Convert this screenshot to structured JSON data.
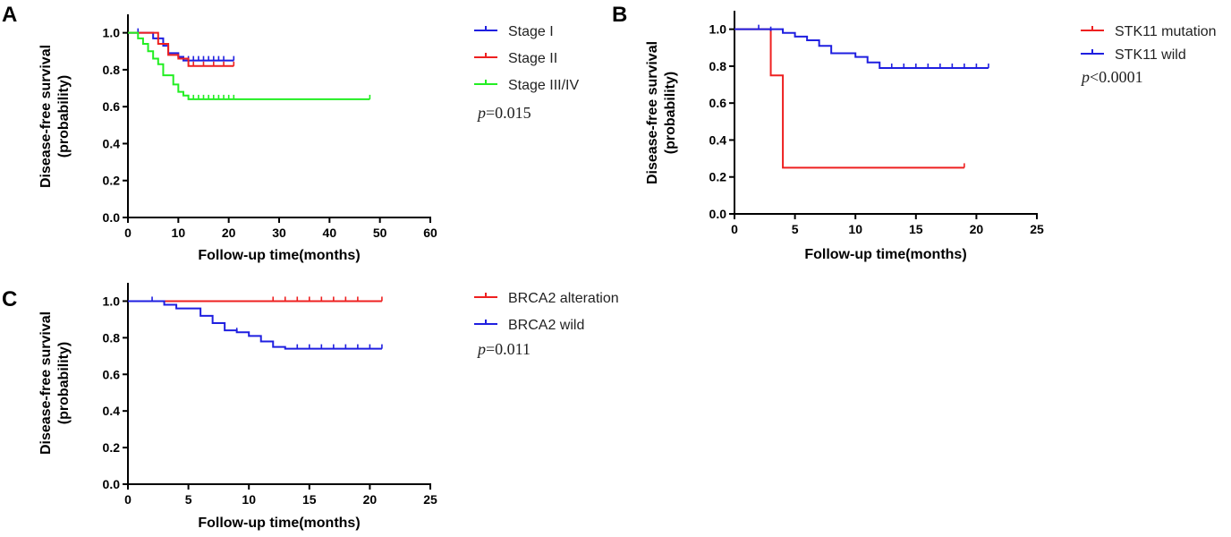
{
  "chart_data": [
    {
      "panel": "A",
      "type": "line",
      "subtype": "kaplan-meier",
      "ylabel_lines": [
        "Disease-free survival",
        "(probability)"
      ],
      "xlabel": "Follow-up time(months)",
      "xlim": [
        0,
        60
      ],
      "ylim": [
        0,
        1.1
      ],
      "xticks": [
        0,
        10,
        20,
        30,
        40,
        50,
        60
      ],
      "yticks": [
        "0.0",
        "0.2",
        "0.4",
        "0.6",
        "0.8",
        "1.0"
      ],
      "legend_position": "right",
      "pvalue_prefix": "p",
      "pvalue_rest": "=0.015",
      "series": [
        {
          "name": "Stage I",
          "color": "#1f1fe0",
          "steps": [
            [
              0,
              1.0
            ],
            [
              5,
              0.97
            ],
            [
              7,
              0.93
            ],
            [
              8,
              0.89
            ],
            [
              10,
              0.87
            ],
            [
              11,
              0.85
            ],
            [
              21,
              0.85
            ]
          ],
          "censors": [
            [
              2,
              1.0
            ],
            [
              12,
              0.85
            ],
            [
              13,
              0.85
            ],
            [
              14,
              0.85
            ],
            [
              15,
              0.85
            ],
            [
              16,
              0.85
            ],
            [
              17,
              0.85
            ],
            [
              18,
              0.85
            ],
            [
              19,
              0.85
            ],
            [
              21,
              0.85
            ]
          ]
        },
        {
          "name": "Stage II",
          "color": "#ee2020",
          "steps": [
            [
              0,
              1.0
            ],
            [
              6,
              0.94
            ],
            [
              8,
              0.88
            ],
            [
              10,
              0.86
            ],
            [
              12,
              0.82
            ],
            [
              21,
              0.82
            ]
          ],
          "censors": [
            [
              13,
              0.82
            ],
            [
              15,
              0.82
            ],
            [
              17,
              0.82
            ],
            [
              19,
              0.82
            ],
            [
              21,
              0.82
            ]
          ]
        },
        {
          "name": "Stage III/IV",
          "color": "#22ee22",
          "steps": [
            [
              0,
              1.0
            ],
            [
              2,
              0.97
            ],
            [
              3,
              0.94
            ],
            [
              4,
              0.9
            ],
            [
              5,
              0.86
            ],
            [
              6,
              0.83
            ],
            [
              7,
              0.77
            ],
            [
              9,
              0.72
            ],
            [
              10,
              0.68
            ],
            [
              11,
              0.66
            ],
            [
              12,
              0.64
            ],
            [
              48,
              0.64
            ]
          ],
          "censors": [
            [
              13,
              0.64
            ],
            [
              14,
              0.64
            ],
            [
              15,
              0.64
            ],
            [
              16,
              0.64
            ],
            [
              17,
              0.64
            ],
            [
              18,
              0.64
            ],
            [
              19,
              0.64
            ],
            [
              20,
              0.64
            ],
            [
              21,
              0.64
            ],
            [
              48,
              0.64
            ]
          ]
        }
      ]
    },
    {
      "panel": "B",
      "type": "line",
      "subtype": "kaplan-meier",
      "ylabel_lines": [
        "Disease-free survival",
        "(probability)"
      ],
      "xlabel": "Follow-up time(months)",
      "xlim": [
        0,
        25
      ],
      "ylim": [
        0,
        1.1
      ],
      "xticks": [
        0,
        5,
        10,
        15,
        20,
        25
      ],
      "yticks": [
        "0.0",
        "0.2",
        "0.4",
        "0.6",
        "0.8",
        "1.0"
      ],
      "legend_position": "right",
      "pvalue_prefix": "p",
      "pvalue_rest": "<0.0001",
      "series": [
        {
          "name": "STK11 mutation",
          "color": "#ee2020",
          "steps": [
            [
              0,
              1.0
            ],
            [
              3,
              0.75
            ],
            [
              4,
              0.25
            ],
            [
              19,
              0.25
            ]
          ],
          "censors": [
            [
              19,
              0.25
            ]
          ]
        },
        {
          "name": "STK11 wild",
          "color": "#1f1fe0",
          "steps": [
            [
              0,
              1.0
            ],
            [
              4,
              0.98
            ],
            [
              5,
              0.96
            ],
            [
              6,
              0.94
            ],
            [
              7,
              0.91
            ],
            [
              8,
              0.87
            ],
            [
              10,
              0.85
            ],
            [
              11,
              0.82
            ],
            [
              12,
              0.79
            ],
            [
              21,
              0.79
            ]
          ],
          "censors": [
            [
              2,
              1.0
            ],
            [
              3,
              0.99
            ],
            [
              4,
              0.98
            ],
            [
              13,
              0.79
            ],
            [
              14,
              0.79
            ],
            [
              15,
              0.79
            ],
            [
              16,
              0.79
            ],
            [
              17,
              0.79
            ],
            [
              18,
              0.79
            ],
            [
              19,
              0.79
            ],
            [
              20,
              0.79
            ],
            [
              21,
              0.79
            ]
          ]
        }
      ]
    },
    {
      "panel": "C",
      "type": "line",
      "subtype": "kaplan-meier",
      "ylabel_lines": [
        "Disease-free survival",
        "(probability)"
      ],
      "xlabel": "Follow-up time(months)",
      "xlim": [
        0,
        25
      ],
      "ylim": [
        0,
        1.1
      ],
      "xticks": [
        0,
        5,
        10,
        15,
        20,
        25
      ],
      "yticks": [
        "0.0",
        "0.2",
        "0.4",
        "0.6",
        "0.8",
        "1.0"
      ],
      "legend_position": "right",
      "pvalue_prefix": "p",
      "pvalue_rest": "=0.011",
      "series": [
        {
          "name": "BRCA2 alteration",
          "color": "#ee2020",
          "steps": [
            [
              0,
              1.0
            ],
            [
              21,
              1.0
            ]
          ],
          "censors": [
            [
              12,
              1.0
            ],
            [
              13,
              1.0
            ],
            [
              14,
              1.0
            ],
            [
              15,
              1.0
            ],
            [
              16,
              1.0
            ],
            [
              17,
              1.0
            ],
            [
              18,
              1.0
            ],
            [
              19,
              1.0
            ],
            [
              21,
              1.0
            ]
          ]
        },
        {
          "name": "BRCA2 wild",
          "color": "#1f1fe0",
          "steps": [
            [
              0,
              1.0
            ],
            [
              3,
              0.98
            ],
            [
              4,
              0.96
            ],
            [
              6,
              0.92
            ],
            [
              7,
              0.88
            ],
            [
              8,
              0.84
            ],
            [
              9,
              0.83
            ],
            [
              10,
              0.81
            ],
            [
              11,
              0.78
            ],
            [
              12,
              0.75
            ],
            [
              13,
              0.74
            ],
            [
              21,
              0.74
            ]
          ],
          "censors": [
            [
              2,
              1.0
            ],
            [
              9,
              0.83
            ],
            [
              14,
              0.74
            ],
            [
              15,
              0.74
            ],
            [
              16,
              0.74
            ],
            [
              17,
              0.74
            ],
            [
              18,
              0.74
            ],
            [
              19,
              0.74
            ],
            [
              20,
              0.74
            ],
            [
              21,
              0.74
            ]
          ]
        }
      ]
    }
  ]
}
